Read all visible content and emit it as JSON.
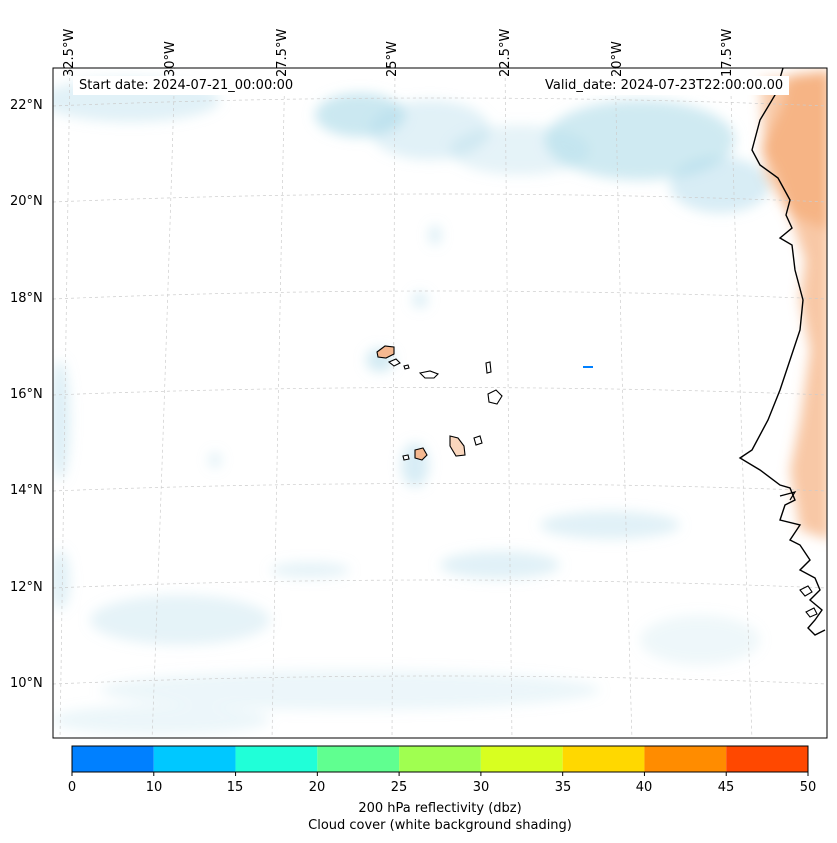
{
  "map": {
    "start_date": "Start date: 2024-07-21_00:00:00",
    "valid_date": "Valid_date: 2024-07-23T22:00:00.00",
    "lon_labels": [
      "32.5°W",
      "30°W",
      "27.5°W",
      "25°W",
      "22.5°W",
      "20°W",
      "17.5°W"
    ],
    "lat_labels": [
      "22°N",
      "20°N",
      "18°N",
      "16°N",
      "14°N",
      "12°N",
      "10°N"
    ]
  },
  "colorbar": {
    "title": "200 hPa reflectivity (dbz)",
    "subtitle": "Cloud cover (white background shading)",
    "ticks": [
      "0",
      "10",
      "15",
      "20",
      "25",
      "30",
      "35",
      "40",
      "45",
      "50"
    ],
    "colors": [
      "#0080ff",
      "#00c8ff",
      "#20ffd8",
      "#60ff90",
      "#a0ff50",
      "#d8ff20",
      "#ffd800",
      "#ff8c00",
      "#ff4800"
    ]
  },
  "colors": {
    "cloud": "#a8d8e8",
    "land_warm": "#f4a46a",
    "coast": "#000000"
  }
}
